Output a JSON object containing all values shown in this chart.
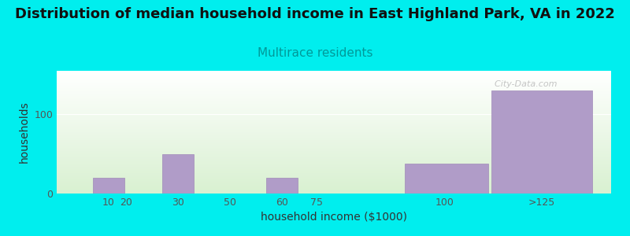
{
  "title": "Distribution of median household income in East Highland Park, VA in 2022",
  "subtitle": "Multirace residents",
  "xlabel": "household income ($1000)",
  "ylabel": "households",
  "bg_outer": "#00EEEE",
  "bg_inner_top": "#ffffff",
  "bg_inner_bottom": "#d8f0d0",
  "bar_color": "#b09cc8",
  "bar_edge_color": "#a08ab8",
  "categories": [
    "10",
    "20",
    "30",
    "50",
    "60",
    "75",
    "100",
    ">125"
  ],
  "values": [
    20,
    0,
    50,
    0,
    20,
    0,
    38,
    130
  ],
  "bar_positions": [
    10,
    20,
    30,
    50,
    60,
    75,
    100,
    125
  ],
  "bar_widths": [
    10,
    10,
    10,
    10,
    10,
    15,
    25,
    30
  ],
  "yticks": [
    0,
    100
  ],
  "ylim": [
    0,
    155
  ],
  "watermark": "  City-Data.com",
  "title_fontsize": 13,
  "subtitle_fontsize": 11,
  "label_fontsize": 10,
  "tick_fontsize": 9
}
